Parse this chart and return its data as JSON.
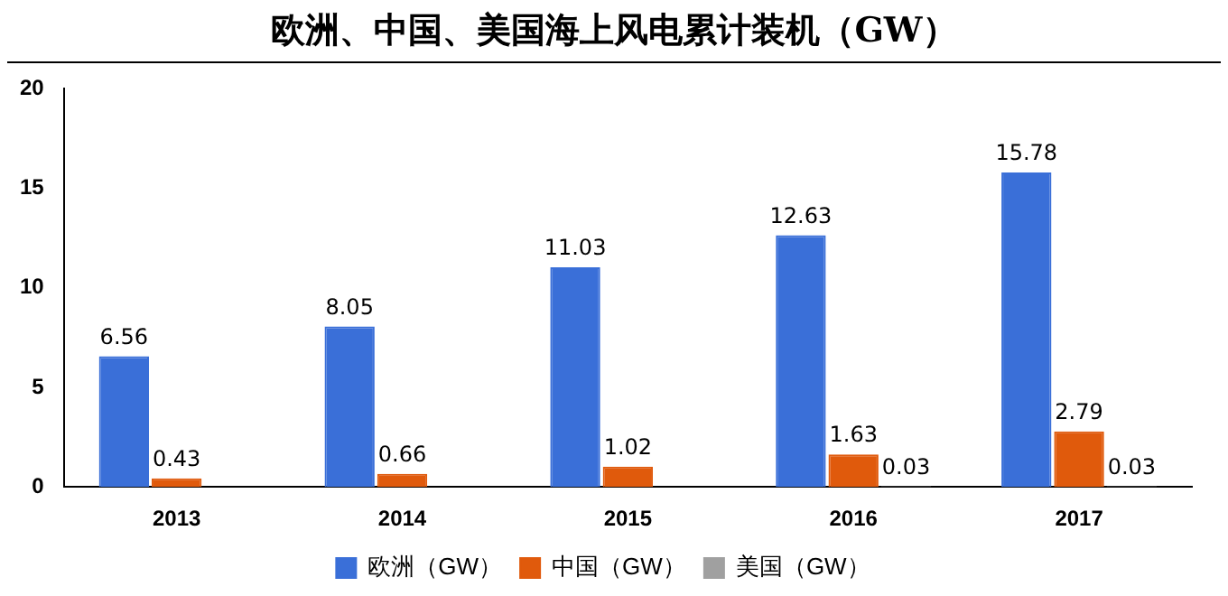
{
  "chart_data": {
    "type": "bar",
    "title": "欧洲、中国、美国海上风电累计装机（GW）",
    "categories": [
      "2013",
      "2014",
      "2015",
      "2016",
      "2017"
    ],
    "series": [
      {
        "name": "欧洲（GW）",
        "color": "#3a6fd8",
        "values": [
          6.56,
          8.05,
          11.03,
          12.63,
          15.78
        ]
      },
      {
        "name": "中国（GW）",
        "color": "#e05a0c",
        "values": [
          0.43,
          0.66,
          1.02,
          1.63,
          2.79
        ]
      },
      {
        "name": "美国（GW）",
        "color": "#a0a0a0",
        "values": [
          null,
          null,
          null,
          0.03,
          0.03
        ]
      }
    ],
    "ylim": [
      0,
      20
    ],
    "yticks": [
      0,
      5,
      10,
      15,
      20
    ],
    "grid": false,
    "legend": "bottom",
    "data_labels": true
  }
}
